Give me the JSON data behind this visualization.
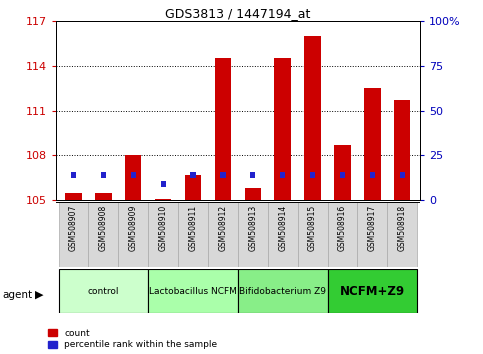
{
  "title": "GDS3813 / 1447194_at",
  "samples": [
    "GSM508907",
    "GSM508908",
    "GSM508909",
    "GSM508910",
    "GSM508911",
    "GSM508912",
    "GSM508913",
    "GSM508914",
    "GSM508915",
    "GSM508916",
    "GSM508917",
    "GSM508918"
  ],
  "count_values": [
    105.5,
    105.5,
    108.0,
    105.1,
    106.7,
    114.5,
    105.8,
    114.5,
    116.0,
    108.7,
    112.5,
    111.7
  ],
  "percentile_values": [
    14,
    14,
    14,
    9,
    14,
    14,
    14,
    14,
    14,
    14,
    14,
    14
  ],
  "count_base": 105.0,
  "ylim_left": [
    105,
    117
  ],
  "ylim_right": [
    0,
    100
  ],
  "yticks_left": [
    105,
    108,
    111,
    114,
    117
  ],
  "yticks_right": [
    0,
    25,
    50,
    75,
    100
  ],
  "yticklabels_right": [
    "0",
    "25",
    "50",
    "75",
    "100%"
  ],
  "bar_color_red": "#CC0000",
  "bar_color_blue": "#2222CC",
  "groups": [
    {
      "label": "control",
      "start": 0,
      "end": 3,
      "color": "#ccffcc"
    },
    {
      "label": "Lactobacillus NCFM",
      "start": 3,
      "end": 6,
      "color": "#aaffaa"
    },
    {
      "label": "Bifidobacterium Z9",
      "start": 6,
      "end": 9,
      "color": "#88ee88"
    },
    {
      "label": "NCFM+Z9",
      "start": 9,
      "end": 12,
      "color": "#33cc33"
    }
  ],
  "agent_label": "agent",
  "legend_count": "count",
  "legend_pct": "percentile rank within the sample",
  "grid_color": "#000000",
  "bar_width": 0.55,
  "bg_color": "#ffffff",
  "tick_color_left": "#CC0000",
  "tick_color_right": "#0000BB"
}
